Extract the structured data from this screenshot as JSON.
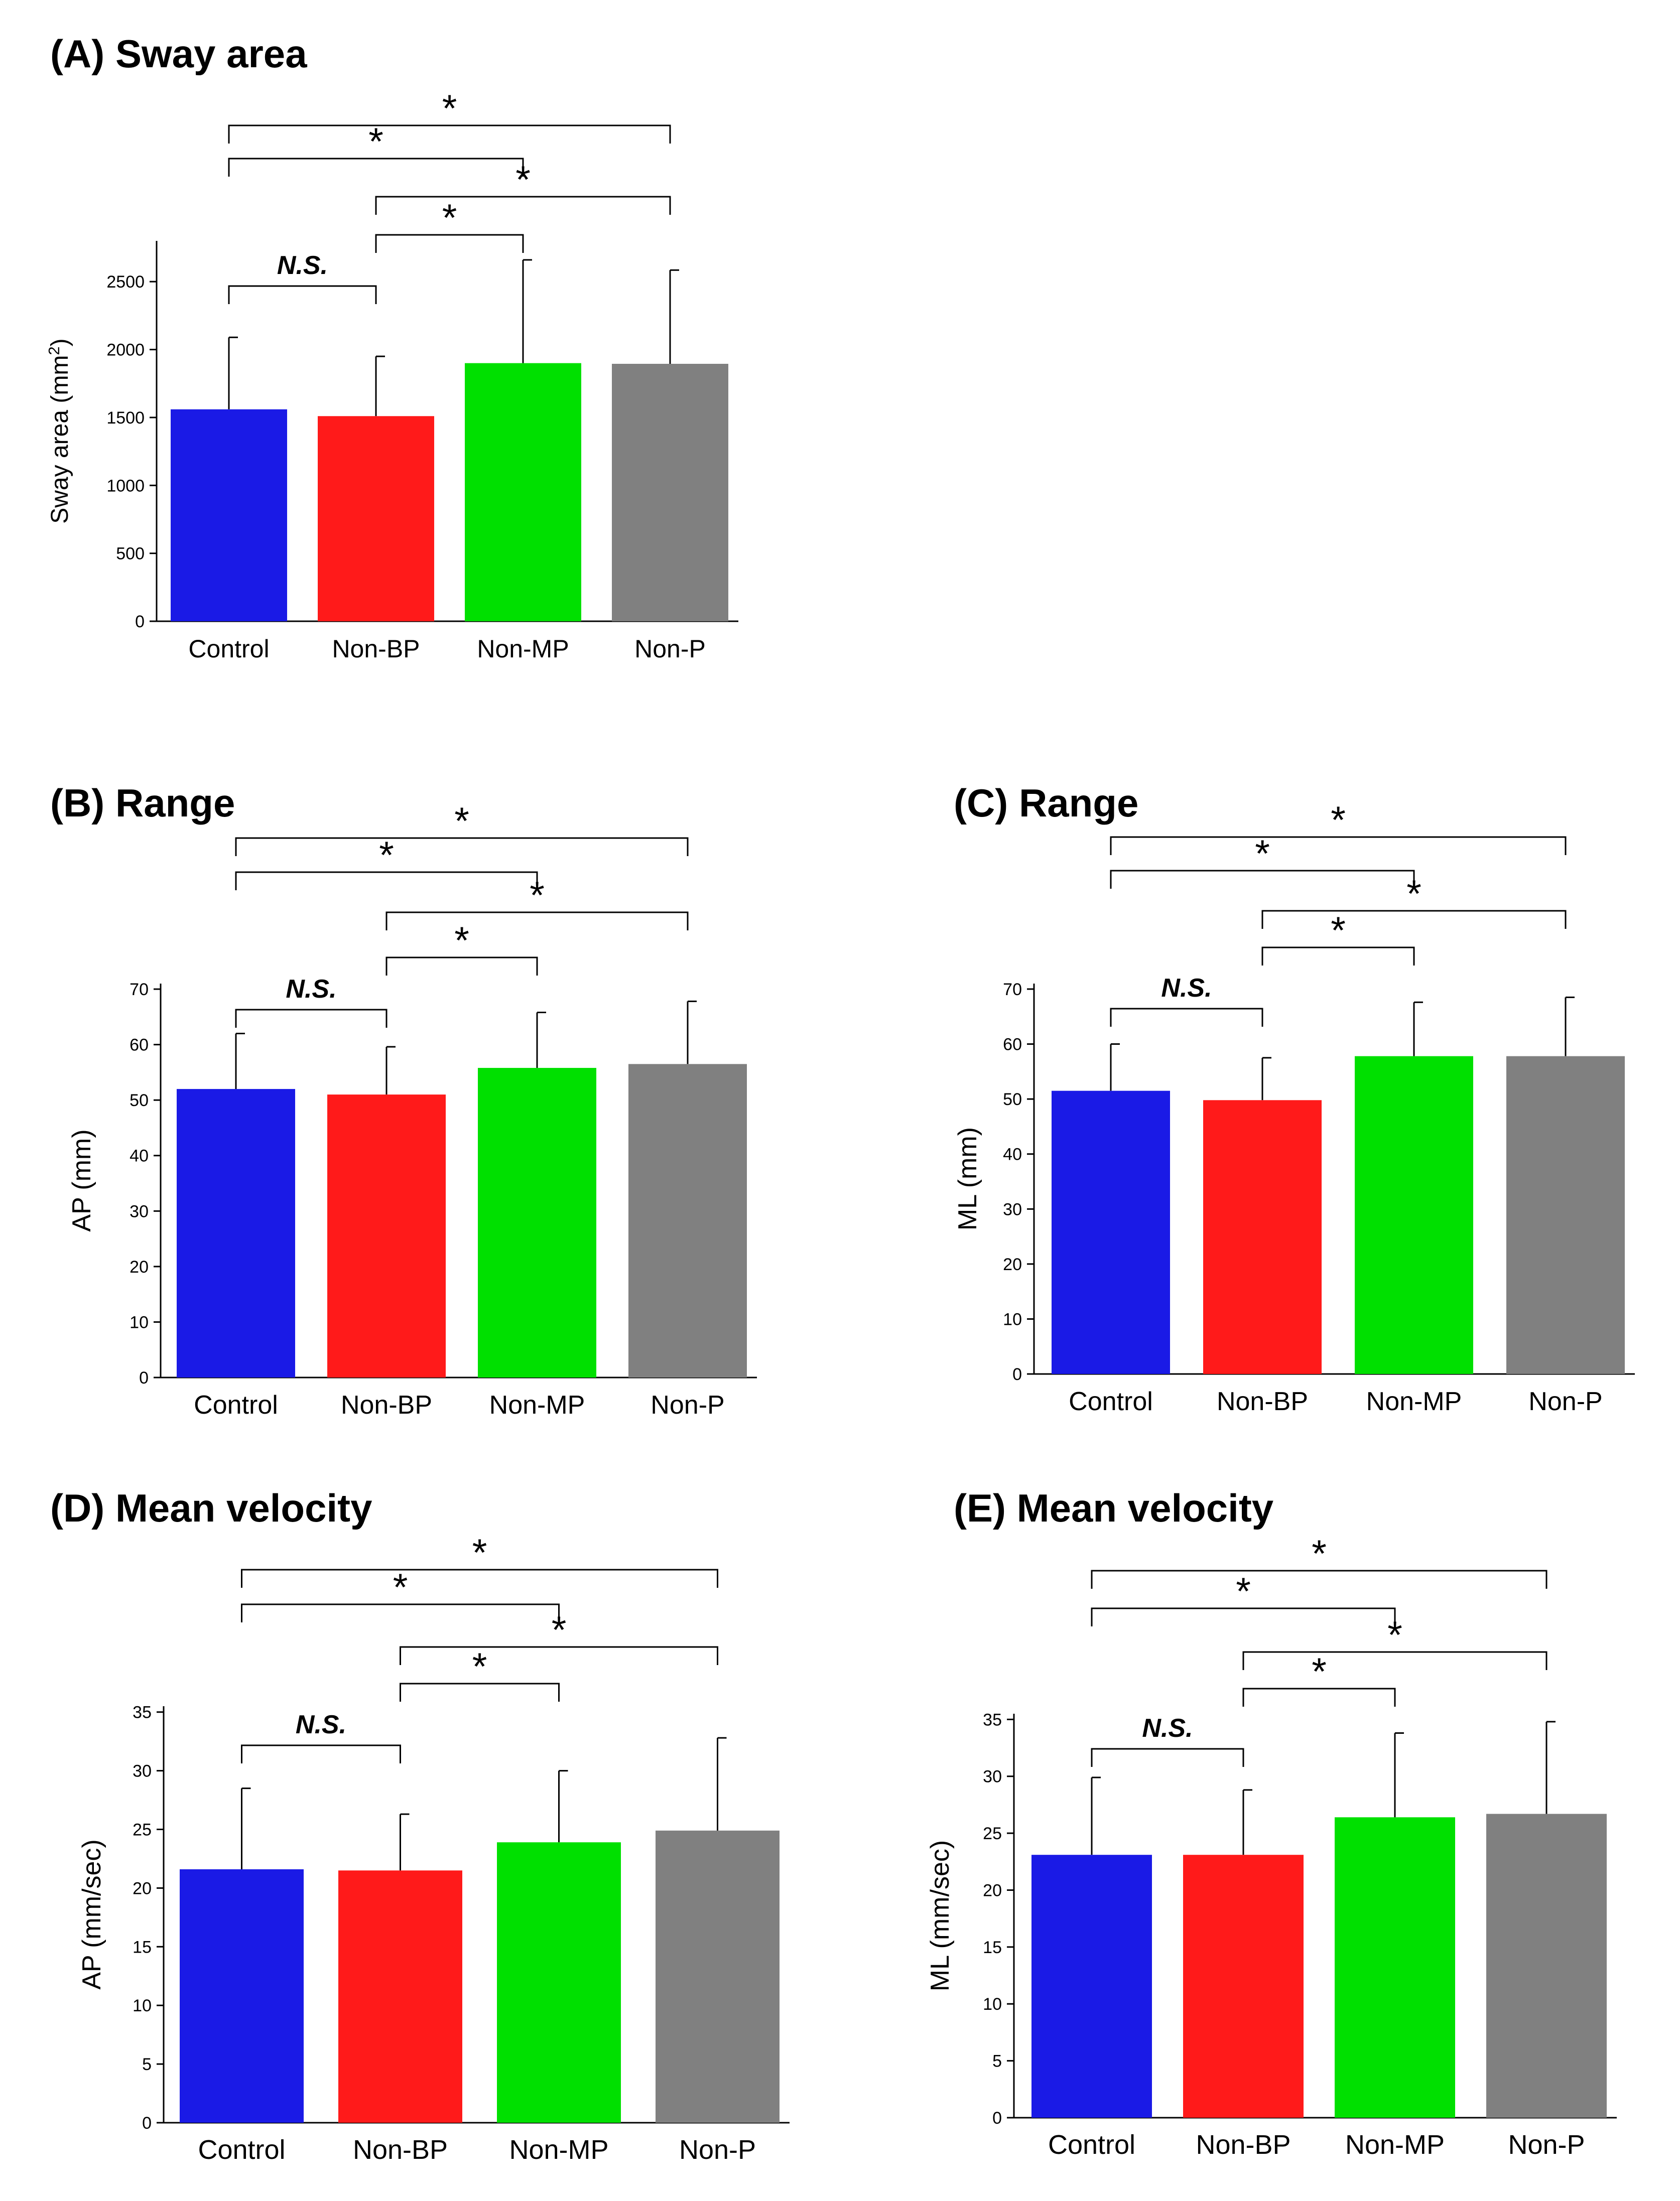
{
  "colors": {
    "Control": "#1a1ae6",
    "Non-BP": "#ff1a1a",
    "Non-MP": "#00e000",
    "Non-P": "#808080"
  },
  "chart_data": [
    {
      "id": "A",
      "type": "bar",
      "title": "(A) Sway area",
      "ylabel": "Sway area (mm²)",
      "ylabel_main": "Sway area (mm",
      "ylabel_sup": "2",
      "ylabel_end": ")",
      "ylim": [
        0,
        2800
      ],
      "yticks": [
        0,
        500,
        1000,
        1500,
        2000,
        2500
      ],
      "categories": [
        "Control",
        "Non-BP",
        "Non-MP",
        "Non-P"
      ],
      "values": [
        1560,
        1510,
        1900,
        1895
      ],
      "errors": [
        530,
        440,
        760,
        690
      ],
      "annotations": [
        {
          "from": "Control",
          "to": "Non-BP",
          "label": "N.S."
        },
        {
          "from": "Non-BP",
          "to": "Non-MP",
          "label": "*"
        },
        {
          "from": "Non-BP",
          "to": "Non-P",
          "label": "*"
        },
        {
          "from": "Control",
          "to": "Non-MP",
          "label": "*"
        },
        {
          "from": "Control",
          "to": "Non-P",
          "label": "*"
        }
      ]
    },
    {
      "id": "B",
      "type": "bar",
      "title": "(B) Range",
      "ylabel": "AP (mm)",
      "ylim": [
        0,
        71
      ],
      "yticks": [
        0,
        10,
        20,
        30,
        40,
        50,
        60,
        70
      ],
      "categories": [
        "Control",
        "Non-BP",
        "Non-MP",
        "Non-P"
      ],
      "values": [
        52,
        51,
        55.8,
        56.5
      ],
      "errors": [
        10,
        8.6,
        10,
        11.3
      ],
      "annotations": [
        {
          "from": "Control",
          "to": "Non-BP",
          "label": "N.S."
        },
        {
          "from": "Non-BP",
          "to": "Non-MP",
          "label": "*"
        },
        {
          "from": "Non-BP",
          "to": "Non-P",
          "label": "*"
        },
        {
          "from": "Control",
          "to": "Non-MP",
          "label": "*"
        },
        {
          "from": "Control",
          "to": "Non-P",
          "label": "*"
        }
      ]
    },
    {
      "id": "C",
      "type": "bar",
      "title": "(C) Range",
      "ylabel": "ML (mm)",
      "ylim": [
        0,
        71
      ],
      "yticks": [
        0,
        10,
        20,
        30,
        40,
        50,
        60,
        70
      ],
      "categories": [
        "Control",
        "Non-BP",
        "Non-MP",
        "Non-P"
      ],
      "values": [
        51.5,
        49.8,
        57.8,
        57.8
      ],
      "errors": [
        8.5,
        7.7,
        9.8,
        10.7
      ],
      "annotations": [
        {
          "from": "Control",
          "to": "Non-BP",
          "label": "N.S."
        },
        {
          "from": "Non-BP",
          "to": "Non-MP",
          "label": "*"
        },
        {
          "from": "Non-BP",
          "to": "Non-P",
          "label": "*"
        },
        {
          "from": "Control",
          "to": "Non-MP",
          "label": "*"
        },
        {
          "from": "Control",
          "to": "Non-P",
          "label": "*"
        }
      ]
    },
    {
      "id": "D",
      "type": "bar",
      "title": "(D) Mean velocity",
      "ylabel": "AP (mm/sec)",
      "ylim": [
        0,
        35.5
      ],
      "yticks": [
        0,
        5,
        10,
        15,
        20,
        25,
        30,
        35
      ],
      "categories": [
        "Control",
        "Non-BP",
        "Non-MP",
        "Non-P"
      ],
      "values": [
        21.6,
        21.5,
        23.9,
        24.9
      ],
      "errors": [
        6.9,
        4.8,
        6.1,
        7.9
      ],
      "annotations": [
        {
          "from": "Control",
          "to": "Non-BP",
          "label": "N.S."
        },
        {
          "from": "Non-BP",
          "to": "Non-MP",
          "label": "*"
        },
        {
          "from": "Non-BP",
          "to": "Non-P",
          "label": "*"
        },
        {
          "from": "Control",
          "to": "Non-MP",
          "label": "*"
        },
        {
          "from": "Control",
          "to": "Non-P",
          "label": "*"
        }
      ]
    },
    {
      "id": "E",
      "type": "bar",
      "title": "(E) Mean velocity",
      "ylabel": "ML (mm/sec)",
      "ylim": [
        0,
        35.5
      ],
      "yticks": [
        0,
        5,
        10,
        15,
        20,
        25,
        30,
        35
      ],
      "categories": [
        "Control",
        "Non-BP",
        "Non-MP",
        "Non-P"
      ],
      "values": [
        23.1,
        23.1,
        26.4,
        26.7
      ],
      "errors": [
        6.8,
        5.7,
        7.4,
        8.1
      ],
      "annotations": [
        {
          "from": "Control",
          "to": "Non-BP",
          "label": "N.S."
        },
        {
          "from": "Non-BP",
          "to": "Non-MP",
          "label": "*"
        },
        {
          "from": "Non-BP",
          "to": "Non-P",
          "label": "*"
        },
        {
          "from": "Control",
          "to": "Non-MP",
          "label": "*"
        },
        {
          "from": "Control",
          "to": "Non-P",
          "label": "*"
        }
      ]
    }
  ]
}
